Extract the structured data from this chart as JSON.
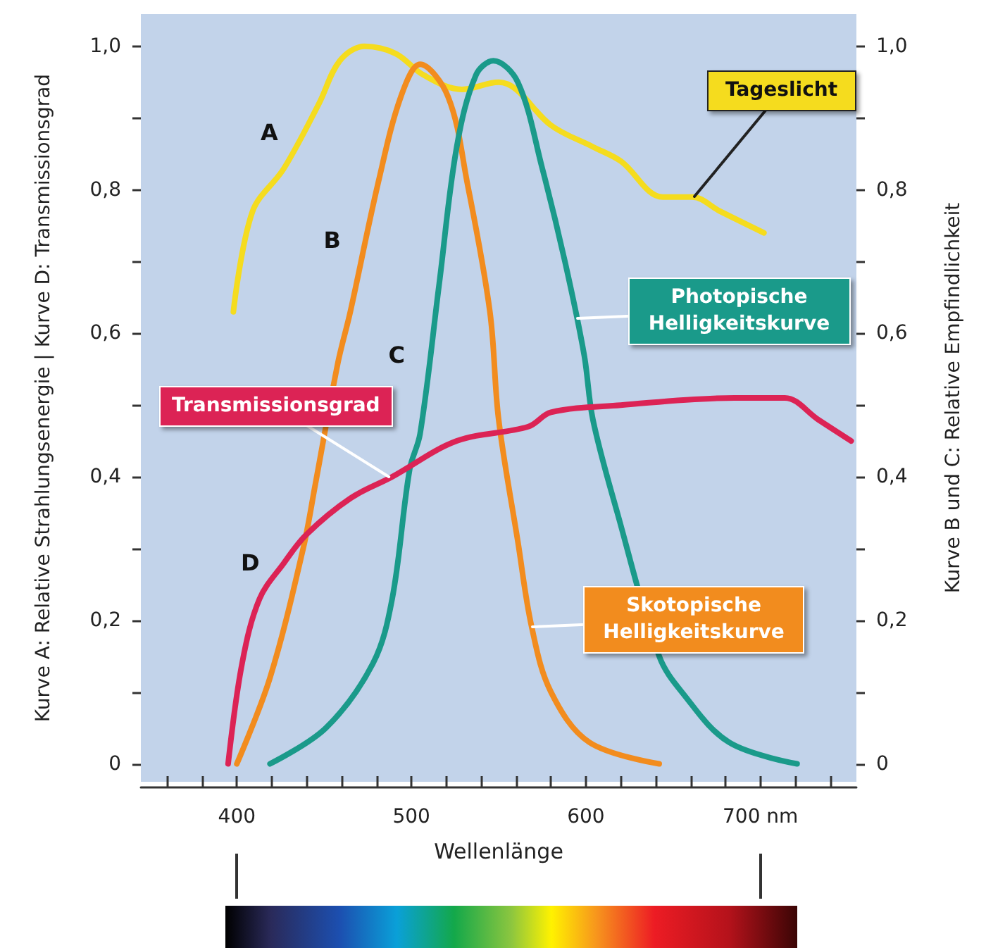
{
  "chart_data": {
    "type": "line",
    "xlabel": "Wellenlänge",
    "ylabel": "Kurve A: Relative Strahlungsenergie | Kurve D: Transmissionsgrad",
    "y2label": "Kurve B und C: Relative Empfindlichkeit",
    "xlim": [
      345,
      755
    ],
    "xticks": [
      {
        "value": 360,
        "label": null
      },
      {
        "value": 380,
        "label": null
      },
      {
        "value": 400,
        "label": "400"
      },
      {
        "value": 420,
        "label": null
      },
      {
        "value": 440,
        "label": null
      },
      {
        "value": 460,
        "label": null
      },
      {
        "value": 480,
        "label": null
      },
      {
        "value": 500,
        "label": "500"
      },
      {
        "value": 520,
        "label": null
      },
      {
        "value": 540,
        "label": null
      },
      {
        "value": 560,
        "label": null
      },
      {
        "value": 580,
        "label": null
      },
      {
        "value": 600,
        "label": "600"
      },
      {
        "value": 620,
        "label": null
      },
      {
        "value": 640,
        "label": null
      },
      {
        "value": 660,
        "label": null
      },
      {
        "value": 680,
        "label": null
      },
      {
        "value": 700,
        "label": "700 nm"
      },
      {
        "value": 720,
        "label": null
      },
      {
        "value": 740,
        "label": null
      }
    ],
    "ylim": [
      -0.025,
      1.045
    ],
    "yticks": [
      {
        "value": 0,
        "label": "0"
      },
      {
        "value": 0.1,
        "label": null
      },
      {
        "value": 0.2,
        "label": "0,2"
      },
      {
        "value": 0.3,
        "label": null
      },
      {
        "value": 0.4,
        "label": "0,4"
      },
      {
        "value": 0.5,
        "label": null
      },
      {
        "value": 0.6,
        "label": "0,6"
      },
      {
        "value": 0.7,
        "label": null
      },
      {
        "value": 0.8,
        "label": "0,8"
      },
      {
        "value": 0.9,
        "label": null
      },
      {
        "value": 1,
        "label": "1,0"
      }
    ],
    "y2lim": [
      -0.025,
      1.045
    ],
    "y2ticks": [
      {
        "value": 0,
        "label": "0"
      },
      {
        "value": 0.1,
        "label": null
      },
      {
        "value": 0.2,
        "label": "0,2"
      },
      {
        "value": 0.3,
        "label": null
      },
      {
        "value": 0.4,
        "label": "0,4"
      },
      {
        "value": 0.5,
        "label": null
      },
      {
        "value": 0.6,
        "label": "0,6"
      },
      {
        "value": 0.7,
        "label": null
      },
      {
        "value": 0.8,
        "label": "0,8"
      },
      {
        "value": 0.9,
        "label": null
      },
      {
        "value": 1,
        "label": "1,0"
      }
    ],
    "grid": false,
    "marker": "none",
    "line_style": "solid",
    "series": [
      {
        "color": "#f5dc1e",
        "x": [
          398,
          409,
          427,
          447,
          459,
          473,
          491,
          507,
          529,
          550,
          560,
          580,
          604,
          620,
          644,
          661,
          677,
          702
        ],
        "values": [
          0.63,
          0.77,
          0.83,
          0.92,
          0.98,
          1.0,
          0.99,
          0.96,
          0.94,
          0.95,
          0.94,
          0.89,
          0.86,
          0.84,
          0.79,
          0.79,
          0.77,
          0.74
        ]
      },
      {
        "color": "#f28c1e",
        "x": [
          400,
          419,
          438,
          445,
          458,
          465,
          481,
          494,
          505,
          521,
          532,
          545,
          550,
          561,
          569,
          580,
          602,
          642
        ],
        "values": [
          0,
          0.12,
          0.3,
          0.39,
          0.56,
          0.63,
          0.81,
          0.93,
          0.975,
          0.93,
          0.81,
          0.63,
          0.48,
          0.31,
          0.19,
          0.1,
          0.03,
          0
        ]
      },
      {
        "color": "#1a9a8a",
        "x": [
          419,
          451,
          478,
          489,
          499,
          505,
          516,
          526,
          537,
          547,
          561,
          575,
          588,
          599,
          604,
          618,
          642,
          655,
          682,
          721
        ],
        "values": [
          0,
          0.05,
          0.14,
          0.23,
          0.41,
          0.46,
          0.67,
          0.86,
          0.96,
          0.98,
          0.95,
          0.83,
          0.7,
          0.57,
          0.48,
          0.35,
          0.15,
          0.1,
          0.03,
          0
        ]
      },
      {
        "color": "#dc2355",
        "x": [
          395,
          403,
          413,
          427,
          440,
          465,
          489,
          526,
          567,
          580,
          620,
          685,
          714,
          733,
          752
        ],
        "values": [
          0,
          0.14,
          0.23,
          0.28,
          0.32,
          0.37,
          0.4,
          0.45,
          0.47,
          0.49,
          0.5,
          0.51,
          0.51,
          0.48,
          0.45
        ]
      }
    ],
    "annotations": [
      {
        "text": "A",
        "x": 438,
        "y": 0.88
      },
      {
        "text": "B",
        "x": 474,
        "y": 0.73
      },
      {
        "text": "C",
        "x": 511,
        "y": 0.57
      },
      {
        "text": "D",
        "x": 427,
        "y": 0.28
      },
      {
        "text": "Tageslicht",
        "x": 662,
        "y": 0.79
      },
      {
        "text": "Photopische\nHelligkeitskurve",
        "x": 595,
        "y": 0.62
      },
      {
        "text": "Transmissionsgrad",
        "x": 487,
        "y": 0.4
      },
      {
        "text": "Skotopische\nHelligkeitskurve",
        "x": 569,
        "y": 0.19
      }
    ]
  }
}
